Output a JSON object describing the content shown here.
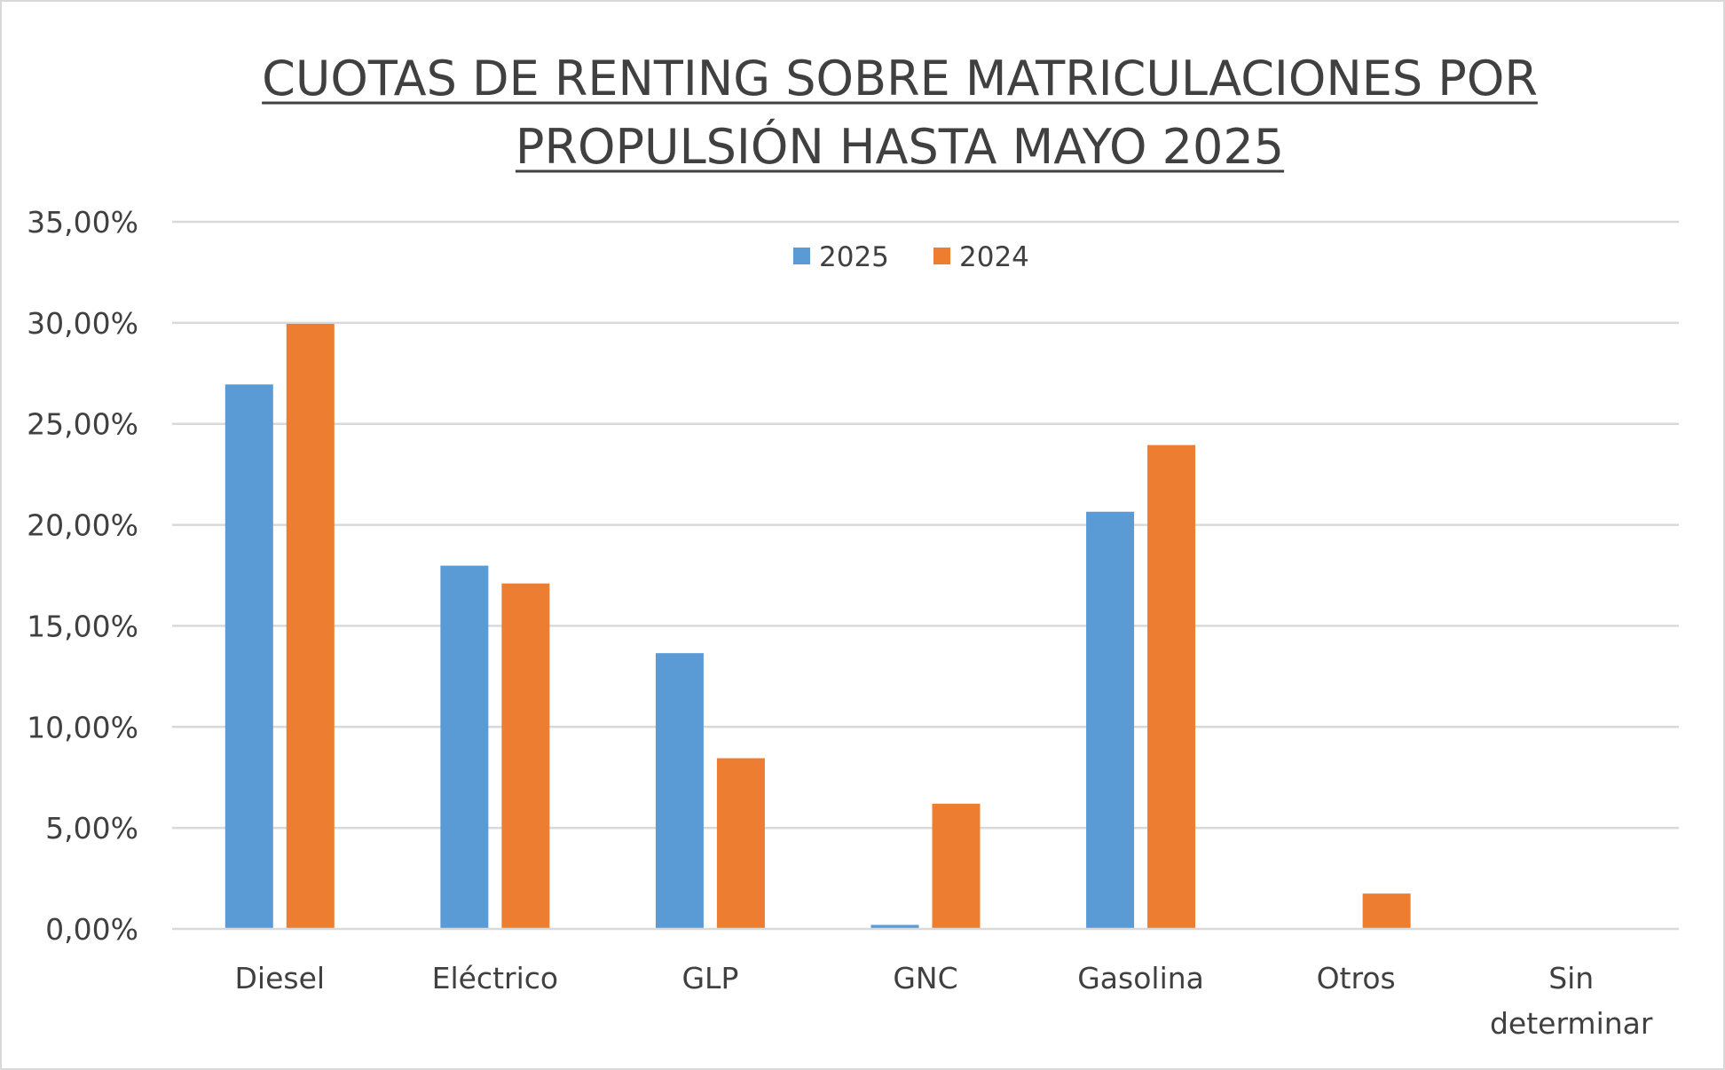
{
  "chart_data": {
    "type": "bar",
    "title_lines": [
      "CUOTAS DE RENTING SOBRE MATRICULACIONES POR",
      "PROPULSIÓN HASTA MAYO 2025"
    ],
    "categories": [
      [
        "Diesel"
      ],
      [
        "Eléctrico"
      ],
      [
        "GLP"
      ],
      [
        "GNC"
      ],
      [
        "Gasolina"
      ],
      [
        "Otros"
      ],
      [
        "Sin",
        "determinar"
      ]
    ],
    "series": [
      {
        "name": "2025",
        "color": "#5b9bd5",
        "values": [
          26.95,
          17.98,
          13.65,
          0.2,
          20.65,
          0,
          0
        ]
      },
      {
        "name": "2024",
        "color": "#ed7d31",
        "values": [
          29.95,
          17.1,
          8.45,
          6.2,
          23.95,
          1.75,
          0
        ]
      }
    ],
    "yticks": [
      "0,00%",
      "5,00%",
      "10,00%",
      "15,00%",
      "20,00%",
      "25,00%",
      "30,00%",
      "35,00%"
    ],
    "ylim": [
      0,
      35
    ],
    "ystep": 5,
    "xlabel": "",
    "ylabel": "",
    "grid": true,
    "legend_position": "top-center"
  }
}
